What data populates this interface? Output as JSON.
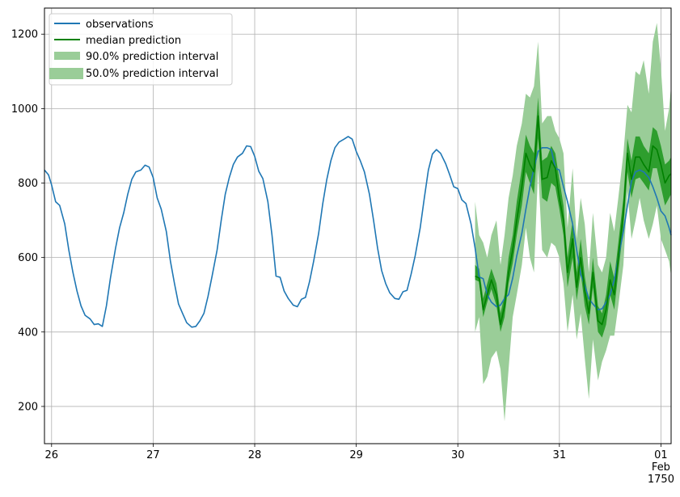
{
  "chart_data": {
    "type": "line",
    "title": "",
    "xlabel": "",
    "ylabel": "",
    "ylim": [
      100,
      1270
    ],
    "xlim_days": [
      25.93,
      32.1
    ],
    "grid": true,
    "legend_placement": "upper-left",
    "x_ticks": [
      {
        "day": 26,
        "lines": [
          "26"
        ]
      },
      {
        "day": 27,
        "lines": [
          "27"
        ]
      },
      {
        "day": 28,
        "lines": [
          "28"
        ]
      },
      {
        "day": 29,
        "lines": [
          "29"
        ]
      },
      {
        "day": 30,
        "lines": [
          "30"
        ]
      },
      {
        "day": 31,
        "lines": [
          "31"
        ]
      },
      {
        "day": 32,
        "lines": [
          "01",
          "Feb",
          "1750"
        ]
      }
    ],
    "y_ticks": [
      200,
      400,
      600,
      800,
      1000,
      1200
    ],
    "colors": {
      "observations": "#1f77b4",
      "median": "#008000",
      "interval_90": "#9acd98",
      "interval_50": "#2e9e2e"
    },
    "legend": [
      {
        "key": "observations",
        "label": "observations"
      },
      {
        "key": "median",
        "label": "median prediction"
      },
      {
        "key": "interval_90",
        "label": "90.0% prediction interval"
      },
      {
        "key": "interval_50",
        "label": "50.0% prediction interval"
      }
    ],
    "series": [
      {
        "name": "observations",
        "x_day": [
          25.93,
          25.97,
          26.0,
          26.04,
          26.08,
          26.13,
          26.17,
          26.21,
          26.25,
          26.29,
          26.33,
          26.38,
          26.42,
          26.46,
          26.5,
          26.54,
          26.58,
          26.63,
          26.67,
          26.71,
          26.75,
          26.79,
          26.83,
          26.88,
          26.92,
          26.96,
          27.0,
          27.04,
          27.08,
          27.13,
          27.17,
          27.21,
          27.25,
          27.29,
          27.33,
          27.38,
          27.42,
          27.46,
          27.5,
          27.54,
          27.58,
          27.63,
          27.67,
          27.71,
          27.75,
          27.79,
          27.83,
          27.88,
          27.92,
          27.96,
          28.0,
          28.04,
          28.08,
          28.13,
          28.17,
          28.21,
          28.25,
          28.29,
          28.33,
          28.38,
          28.42,
          28.46,
          28.5,
          28.54,
          28.58,
          28.63,
          28.67,
          28.71,
          28.75,
          28.79,
          28.83,
          28.88,
          28.92,
          28.96,
          29.0,
          29.04,
          29.08,
          29.13,
          29.17,
          29.21,
          29.25,
          29.29,
          29.33,
          29.38,
          29.42,
          29.46,
          29.5,
          29.54,
          29.58,
          29.63,
          29.67,
          29.71,
          29.75,
          29.79,
          29.83,
          29.88,
          29.92,
          29.96,
          30.0,
          30.04,
          30.08,
          30.13,
          30.17,
          30.21,
          30.25,
          30.29,
          30.33,
          30.38,
          30.42,
          30.46,
          30.5,
          30.54,
          30.58,
          30.63,
          30.67,
          30.71,
          30.75,
          30.79,
          30.83,
          30.88,
          30.92,
          30.96,
          31.0,
          31.04,
          31.08,
          31.13,
          31.17,
          31.21,
          31.25,
          31.29,
          31.33,
          31.38,
          31.42,
          31.46,
          31.5,
          31.54,
          31.58,
          31.63,
          31.67,
          31.71,
          31.75,
          31.79,
          31.83,
          31.88,
          31.92,
          31.96,
          32.0,
          32.04,
          32.08,
          32.1
        ],
        "values": [
          835,
          822,
          795,
          750,
          740,
          690,
          620,
          560,
          510,
          470,
          445,
          435,
          420,
          422,
          415,
          470,
          545,
          625,
          680,
          720,
          770,
          810,
          830,
          835,
          848,
          843,
          815,
          760,
          730,
          670,
          590,
          530,
          475,
          450,
          425,
          413,
          415,
          430,
          450,
          495,
          550,
          620,
          700,
          770,
          815,
          850,
          870,
          880,
          900,
          898,
          872,
          832,
          812,
          750,
          660,
          550,
          547,
          510,
          490,
          472,
          468,
          488,
          493,
          535,
          590,
          665,
          745,
          810,
          860,
          895,
          910,
          918,
          925,
          918,
          885,
          860,
          830,
          770,
          700,
          625,
          565,
          530,
          505,
          490,
          488,
          508,
          512,
          555,
          605,
          680,
          760,
          835,
          878,
          890,
          880,
          852,
          822,
          790,
          785,
          755,
          745,
          690,
          625,
          548,
          543,
          500,
          480,
          468,
          472,
          490,
          500,
          545,
          605,
          665,
          730,
          790,
          840,
          885,
          895,
          895,
          890,
          840,
          835,
          790,
          750,
          690,
          620,
          555,
          525,
          490,
          475,
          460,
          462,
          480,
          500,
          540,
          600,
          670,
          740,
          805,
          830,
          835,
          830,
          815,
          790,
          760,
          725,
          712,
          680,
          660
        ]
      },
      {
        "name": "median prediction",
        "x_day": [
          30.17,
          30.21,
          30.25,
          30.29,
          30.33,
          30.38,
          30.42,
          30.46,
          30.5,
          30.54,
          30.58,
          30.63,
          30.67,
          30.71,
          30.75,
          30.79,
          30.83,
          30.88,
          30.92,
          30.96,
          31.0,
          31.04,
          31.08,
          31.13,
          31.17,
          31.21,
          31.25,
          31.29,
          31.33,
          31.38,
          31.42,
          31.46,
          31.5,
          31.54,
          31.58,
          31.63,
          31.67,
          31.71,
          31.75,
          31.79,
          31.83,
          31.88,
          31.92,
          31.96,
          32.0,
          32.04,
          32.08,
          32.1
        ],
        "values": [
          550,
          545,
          460,
          500,
          540,
          500,
          420,
          470,
          560,
          620,
          700,
          790,
          880,
          850,
          830,
          980,
          810,
          815,
          860,
          840,
          760,
          700,
          560,
          650,
          520,
          600,
          510,
          450,
          560,
          430,
          420,
          460,
          540,
          500,
          600,
          720,
          880,
          810,
          870,
          870,
          850,
          830,
          900,
          890,
          850,
          800,
          820,
          825
        ],
        "lower_50": [
          540,
          535,
          440,
          480,
          515,
          470,
          400,
          440,
          530,
          585,
          660,
          740,
          830,
          800,
          770,
          920,
          760,
          750,
          800,
          790,
          730,
          660,
          520,
          600,
          485,
          560,
          470,
          420,
          520,
          400,
          385,
          420,
          500,
          460,
          560,
          680,
          830,
          760,
          810,
          815,
          800,
          780,
          840,
          840,
          790,
          740,
          760,
          770
        ],
        "upper_50": [
          580,
          570,
          490,
          530,
          570,
          530,
          450,
          500,
          600,
          660,
          750,
          840,
          930,
          900,
          880,
          1030,
          860,
          870,
          900,
          880,
          810,
          740,
          600,
          700,
          560,
          650,
          550,
          480,
          600,
          470,
          450,
          500,
          590,
          545,
          640,
          760,
          920,
          860,
          925,
          925,
          900,
          880,
          950,
          940,
          900,
          850,
          860,
          870
        ],
        "lower_90": [
          400,
          440,
          260,
          280,
          330,
          350,
          300,
          160,
          300,
          440,
          500,
          580,
          680,
          600,
          560,
          840,
          620,
          600,
          640,
          630,
          600,
          530,
          400,
          500,
          380,
          450,
          330,
          220,
          380,
          270,
          320,
          350,
          390,
          390,
          470,
          580,
          780,
          650,
          700,
          760,
          700,
          650,
          690,
          740,
          650,
          620,
          590,
          550
        ],
        "upper_90": [
          750,
          660,
          640,
          600,
          660,
          700,
          580,
          660,
          760,
          820,
          900,
          960,
          1040,
          1030,
          1060,
          1180,
          960,
          980,
          980,
          940,
          920,
          880,
          680,
          840,
          650,
          760,
          690,
          560,
          720,
          580,
          560,
          600,
          720,
          670,
          760,
          880,
          1010,
          990,
          1100,
          1090,
          1130,
          1040,
          1180,
          1230,
          1110,
          940,
          1000,
          1060
        ]
      }
    ]
  }
}
